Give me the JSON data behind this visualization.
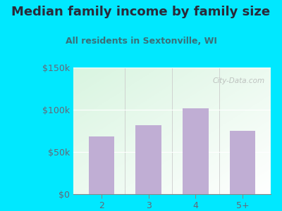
{
  "title": "Median family income by family size",
  "subtitle": "All residents in Sextonville, WI",
  "categories": [
    "2",
    "3",
    "4",
    "5+"
  ],
  "values": [
    68000,
    82000,
    102000,
    75000
  ],
  "bar_color": "#c0aed4",
  "ylim": [
    0,
    150000
  ],
  "yticks": [
    0,
    50000,
    100000,
    150000
  ],
  "ytick_labels": [
    "$0",
    "$50k",
    "$100k",
    "$150k"
  ],
  "background_outer": "#00e8ff",
  "title_color": "#2a2a3a",
  "subtitle_color": "#3a6e78",
  "tick_color": "#666677",
  "title_fontsize": 13,
  "subtitle_fontsize": 9,
  "watermark": "City-Data.com"
}
